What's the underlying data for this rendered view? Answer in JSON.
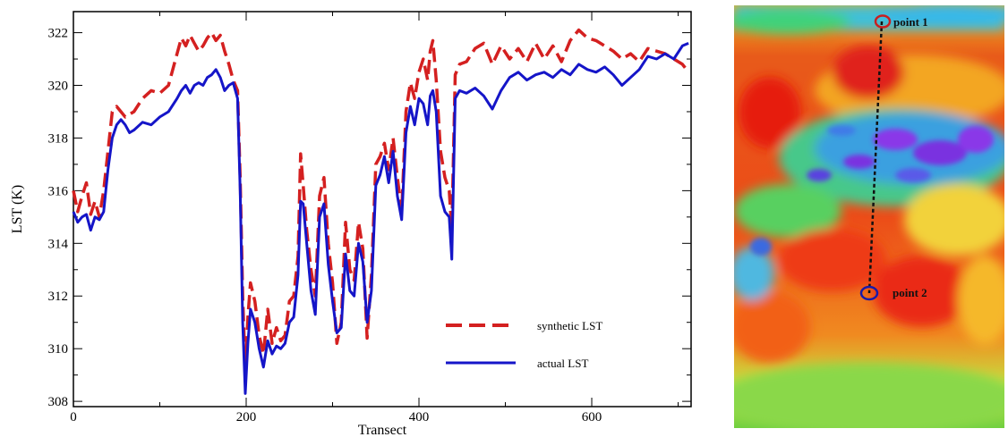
{
  "chart_data": {
    "type": "line",
    "xlabel": "Transect",
    "ylabel": "LST (K)",
    "xlim": [
      0,
      715
    ],
    "ylim": [
      307.8,
      322.8
    ],
    "xticks": [
      0,
      200,
      400,
      600
    ],
    "yticks": [
      308,
      310,
      312,
      314,
      316,
      318,
      320,
      322
    ],
    "grid": false,
    "legend_position": "bottom-right",
    "series": [
      {
        "name": "synthetic LST",
        "color": "#d42020",
        "style": "dashed",
        "x": [
          0,
          5,
          10,
          15,
          20,
          25,
          30,
          35,
          40,
          45,
          50,
          55,
          60,
          65,
          70,
          80,
          90,
          100,
          110,
          120,
          125,
          130,
          135,
          140,
          145,
          150,
          155,
          160,
          165,
          170,
          175,
          180,
          185,
          190,
          193,
          196,
          199,
          202,
          205,
          210,
          215,
          220,
          225,
          230,
          235,
          240,
          245,
          250,
          255,
          260,
          263,
          266,
          270,
          275,
          280,
          285,
          290,
          295,
          300,
          305,
          310,
          315,
          320,
          325,
          330,
          335,
          340,
          345,
          350,
          355,
          360,
          365,
          370,
          375,
          380,
          385,
          390,
          395,
          400,
          405,
          410,
          413,
          416,
          420,
          425,
          430,
          435,
          438,
          442,
          447,
          455,
          465,
          475,
          485,
          495,
          505,
          515,
          525,
          535,
          545,
          555,
          565,
          575,
          585,
          595,
          605,
          615,
          625,
          635,
          645,
          655,
          665,
          675,
          685,
          695,
          705,
          712
        ],
        "values": [
          316.0,
          315.2,
          315.8,
          316.3,
          315.1,
          315.6,
          315.0,
          316.0,
          317.5,
          319.0,
          319.2,
          319.0,
          318.8,
          318.9,
          319.0,
          319.5,
          319.8,
          319.7,
          320.0,
          321.2,
          321.8,
          321.5,
          321.9,
          321.6,
          321.3,
          321.5,
          321.8,
          322.0,
          321.7,
          321.9,
          321.3,
          320.8,
          320.2,
          319.8,
          316.5,
          312.0,
          309.2,
          311.2,
          312.5,
          311.8,
          310.5,
          309.8,
          311.5,
          310.2,
          310.8,
          310.3,
          310.5,
          311.8,
          312.0,
          313.5,
          317.4,
          316.2,
          314.5,
          313.0,
          312.0,
          315.8,
          316.5,
          314.0,
          312.5,
          310.2,
          311.0,
          314.8,
          313.0,
          312.6,
          314.8,
          313.8,
          310.4,
          312.8,
          317.0,
          317.3,
          317.8,
          316.8,
          318.0,
          316.5,
          315.2,
          319.0,
          320.1,
          319.5,
          320.5,
          321.0,
          320.2,
          321.3,
          321.7,
          320.2,
          317.5,
          316.5,
          316.0,
          314.5,
          320.4,
          320.8,
          320.9,
          321.4,
          321.6,
          320.8,
          321.5,
          321.0,
          321.4,
          320.9,
          321.6,
          321.0,
          321.5,
          320.9,
          321.7,
          322.1,
          321.8,
          321.7,
          321.5,
          321.3,
          321.0,
          321.2,
          320.9,
          321.4,
          321.3,
          321.2,
          321.0,
          320.8,
          320.5
        ]
      },
      {
        "name": "actual LST",
        "color": "#1515c8",
        "style": "solid",
        "x": [
          0,
          5,
          10,
          15,
          20,
          25,
          30,
          35,
          40,
          45,
          50,
          55,
          60,
          65,
          70,
          80,
          90,
          100,
          110,
          120,
          125,
          130,
          135,
          140,
          145,
          150,
          155,
          160,
          165,
          170,
          175,
          180,
          185,
          190,
          193,
          196,
          199,
          202,
          205,
          210,
          215,
          220,
          225,
          230,
          235,
          240,
          245,
          250,
          255,
          260,
          263,
          266,
          270,
          275,
          280,
          285,
          290,
          295,
          300,
          305,
          310,
          315,
          320,
          325,
          330,
          335,
          340,
          345,
          350,
          355,
          360,
          365,
          370,
          375,
          380,
          385,
          390,
          395,
          400,
          405,
          410,
          413,
          416,
          420,
          425,
          430,
          435,
          438,
          442,
          447,
          455,
          465,
          475,
          485,
          495,
          505,
          515,
          525,
          535,
          545,
          555,
          565,
          575,
          585,
          595,
          605,
          615,
          625,
          635,
          645,
          655,
          665,
          675,
          685,
          695,
          705,
          712
        ],
        "values": [
          315.2,
          314.8,
          315.0,
          315.1,
          314.5,
          315.0,
          314.9,
          315.2,
          316.8,
          318.0,
          318.5,
          318.7,
          318.5,
          318.2,
          318.3,
          318.6,
          318.5,
          318.8,
          319.0,
          319.5,
          319.8,
          320.0,
          319.7,
          320.0,
          320.1,
          320.0,
          320.3,
          320.4,
          320.6,
          320.3,
          319.8,
          320.0,
          320.1,
          319.5,
          316.0,
          311.0,
          308.3,
          310.2,
          311.5,
          311.0,
          310.0,
          309.3,
          310.3,
          309.8,
          310.1,
          310.0,
          310.2,
          311.0,
          311.2,
          312.8,
          315.6,
          315.5,
          314.0,
          312.2,
          311.3,
          315.0,
          315.5,
          313.2,
          311.8,
          310.6,
          310.8,
          313.6,
          312.2,
          312.0,
          314.0,
          313.3,
          311.0,
          312.2,
          316.2,
          316.6,
          317.3,
          316.3,
          317.5,
          315.8,
          314.9,
          318.2,
          319.2,
          318.5,
          319.5,
          319.3,
          318.5,
          319.6,
          319.8,
          319.0,
          315.8,
          315.2,
          315.0,
          313.4,
          319.5,
          319.8,
          319.7,
          319.9,
          319.6,
          319.1,
          319.8,
          320.3,
          320.5,
          320.2,
          320.4,
          320.5,
          320.3,
          320.6,
          320.4,
          320.8,
          320.6,
          320.5,
          320.7,
          320.4,
          320.0,
          320.3,
          320.6,
          321.1,
          321.0,
          321.2,
          321.0,
          321.5,
          321.6
        ]
      }
    ]
  },
  "map": {
    "point1_label": "point 1",
    "point2_label": "point 2",
    "point1_color": "#c82020",
    "point2_color": "#1a1aa8"
  }
}
